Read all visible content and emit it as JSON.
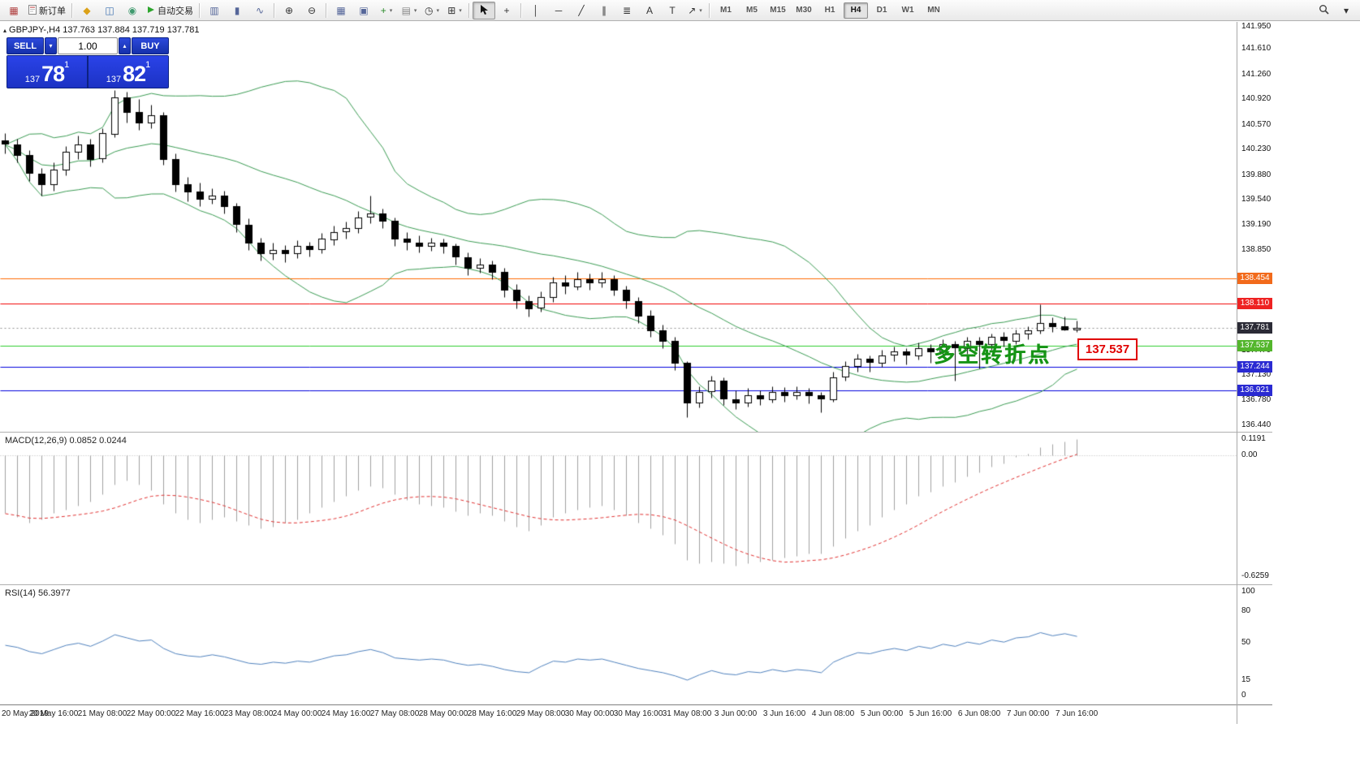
{
  "toolbar": {
    "timeframes": [
      "M1",
      "M5",
      "M15",
      "M30",
      "H1",
      "H4",
      "D1",
      "W1",
      "MN"
    ],
    "active_timeframe": "H4",
    "items": [
      {
        "k": "btn",
        "name": "charts-window-icon",
        "g": "▦",
        "c": "#b04040"
      },
      {
        "k": "btn",
        "name": "new-order-button",
        "g": "@page",
        "label": "新订单"
      },
      {
        "k": "sep"
      },
      {
        "k": "btn",
        "name": "marketwatch-icon",
        "g": "◆",
        "c": "#dba118"
      },
      {
        "k": "btn",
        "name": "data-window-icon",
        "g": "◫",
        "c": "#3a6fb0"
      },
      {
        "k": "btn",
        "name": "navigator-icon",
        "g": "◉",
        "c": "#3f9a6e"
      },
      {
        "k": "btn",
        "name": "autotrading-button",
        "g": "@play",
        "label": "自动交易"
      },
      {
        "k": "sep"
      },
      {
        "k": "btn",
        "name": "bar-chart-icon",
        "g": "▥",
        "c": "#556699"
      },
      {
        "k": "btn",
        "name": "candlestick-chart-icon",
        "g": "▮",
        "c": "#556699"
      },
      {
        "k": "btn",
        "name": "line-chart-icon",
        "g": "∿",
        "c": "#556699"
      },
      {
        "k": "sep"
      },
      {
        "k": "btn",
        "name": "zoom-in-icon",
        "g": "⊕",
        "c": "#333333"
      },
      {
        "k": "btn",
        "name": "zoom-out-icon",
        "g": "⊖",
        "c": "#333333"
      },
      {
        "k": "sep"
      },
      {
        "k": "btn",
        "name": "tile-windows-icon",
        "g": "▦",
        "c": "#556699"
      },
      {
        "k": "btn",
        "name": "cascade-windows-icon",
        "g": "▣",
        "c": "#556699"
      },
      {
        "k": "btn",
        "name": "new-chart-icon",
        "g": "+",
        "c": "#2a8a2a",
        "caret": true
      },
      {
        "k": "btn",
        "name": "profiles-icon",
        "g": "▤",
        "c": "#888888",
        "caret": true
      },
      {
        "k": "btn",
        "name": "period-icon",
        "g": "◷",
        "c": "#333333",
        "caret": true
      },
      {
        "k": "btn",
        "name": "templates-icon",
        "g": "⊞",
        "c": "#333333",
        "caret": true
      },
      {
        "k": "sep"
      },
      {
        "k": "btn",
        "name": "cursor-icon",
        "g": "@cursor",
        "active": true
      },
      {
        "k": "btn",
        "name": "crosshair-icon",
        "g": "+",
        "c": "#333333"
      },
      {
        "k": "sep"
      },
      {
        "k": "btn",
        "name": "vertical-line-icon",
        "g": "│",
        "c": "#333333"
      },
      {
        "k": "btn",
        "name": "horizontal-line-icon",
        "g": "─",
        "c": "#333333"
      },
      {
        "k": "btn",
        "name": "trendline-icon",
        "g": "╱",
        "c": "#333333"
      },
      {
        "k": "btn",
        "name": "equidistant-channel-icon",
        "g": "∥",
        "c": "#333333"
      },
      {
        "k": "btn",
        "name": "fibonacci-icon",
        "g": "≣",
        "c": "#333333"
      },
      {
        "k": "btn",
        "name": "text-icon",
        "g": "A",
        "c": "#333333"
      },
      {
        "k": "btn",
        "name": "label-icon",
        "g": "T",
        "c": "#333333"
      },
      {
        "k": "btn",
        "name": "arrows-icon",
        "g": "↗",
        "c": "#333333",
        "caret": true
      },
      {
        "k": "sep"
      },
      {
        "k": "tf"
      },
      {
        "k": "spacer"
      },
      {
        "k": "btn",
        "name": "search-icon",
        "g": "@search"
      },
      {
        "k": "btn",
        "name": "menu-chevron-icon",
        "g": "▾",
        "c": "#333333"
      }
    ]
  },
  "chart": {
    "collapse_icon": "▴",
    "header_title": "GBPJPY-,H4 137.763 137.884 137.719 137.781",
    "one_click": {
      "sell_label": "SELL",
      "buy_label": "BUY",
      "volume": "1.00",
      "dec_glyph": "▾",
      "inc_glyph": "▴",
      "sell_prefix": "137",
      "sell_big": "78",
      "sell_sup": "1",
      "buy_prefix": "137",
      "buy_big": "82",
      "buy_sup": "1"
    },
    "annotation": "多空转折点",
    "price_flag": "137.537"
  },
  "chart_data": {
    "type": "candlestick",
    "title": "GBPJPY-,H4",
    "bars_per_label": 4,
    "x_labels": [
      "20 May 2019",
      "20 May 16:00",
      "21 May 08:00",
      "22 May 00:00",
      "22 May 16:00",
      "23 May 08:00",
      "24 May 00:00",
      "24 May 16:00",
      "27 May 08:00",
      "28 May 00:00",
      "28 May 16:00",
      "29 May 08:00",
      "30 May 00:00",
      "30 May 16:00",
      "31 May 08:00",
      "3 Jun 00:00",
      "3 Jun 16:00",
      "4 Jun 08:00",
      "5 Jun 00:00",
      "5 Jun 16:00",
      "6 Jun 08:00",
      "7 Jun 00:00",
      "7 Jun 16:00"
    ],
    "price_axis": {
      "view_max": 141.972,
      "view_min": 136.373,
      "plain_ticks": [
        "141.950",
        "141.610",
        "141.260",
        "140.920",
        "140.570",
        "140.230",
        "139.880",
        "139.540",
        "139.190",
        "138.850",
        "137.470",
        "137.130",
        "136.780",
        "136.440"
      ]
    },
    "hlines": [
      {
        "price": 138.454,
        "label": "138.454",
        "line": "#ff6a00",
        "badge": "#f26a1b",
        "style": "solid"
      },
      {
        "price": 138.11,
        "label": "138.110",
        "line": "#f00000",
        "badge": "#ee2222",
        "style": "solid"
      },
      {
        "price": 137.781,
        "label": "137.781",
        "line": "#909090",
        "badge": "#2b2b36",
        "style": "dot"
      },
      {
        "price": 137.537,
        "label": "137.537",
        "line": "#2ecc2e",
        "badge": "#53b62c",
        "style": "solid"
      },
      {
        "price": 137.244,
        "label": "137.244",
        "line": "#0000dd",
        "badge": "#2a2ad2",
        "style": "solid"
      },
      {
        "price": 136.921,
        "label": "136.921",
        "line": "#0000dd",
        "badge": "#2a2ad2",
        "style": "solid"
      }
    ],
    "bollinger": {
      "period": 20,
      "deviation": 2,
      "color": "#3b9b53"
    },
    "candles": [
      [
        140.35,
        140.45,
        140.18,
        140.3
      ],
      [
        140.3,
        140.38,
        140.05,
        140.15
      ],
      [
        140.15,
        140.22,
        139.8,
        139.9
      ],
      [
        139.9,
        139.98,
        139.6,
        139.75
      ],
      [
        139.75,
        140.05,
        139.66,
        139.95
      ],
      [
        139.95,
        140.28,
        139.88,
        140.2
      ],
      [
        140.2,
        140.42,
        140.1,
        140.3
      ],
      [
        140.3,
        140.38,
        140.0,
        140.1
      ],
      [
        140.1,
        140.52,
        140.05,
        140.45
      ],
      [
        140.45,
        141.05,
        140.4,
        140.95
      ],
      [
        140.95,
        141.02,
        140.6,
        140.75
      ],
      [
        140.75,
        140.92,
        140.5,
        140.6
      ],
      [
        140.6,
        140.85,
        140.52,
        140.7
      ],
      [
        140.7,
        140.75,
        140.02,
        140.1
      ],
      [
        140.1,
        140.18,
        139.65,
        139.75
      ],
      [
        139.75,
        139.85,
        139.52,
        139.65
      ],
      [
        139.65,
        139.77,
        139.45,
        139.55
      ],
      [
        139.55,
        139.7,
        139.48,
        139.6
      ],
      [
        139.6,
        139.66,
        139.35,
        139.45
      ],
      [
        139.45,
        139.5,
        139.1,
        139.2
      ],
      [
        139.2,
        139.28,
        138.85,
        138.95
      ],
      [
        138.95,
        139.02,
        138.7,
        138.8
      ],
      [
        138.8,
        138.95,
        138.72,
        138.85
      ],
      [
        138.85,
        138.92,
        138.68,
        138.8
      ],
      [
        138.8,
        138.98,
        138.74,
        138.9
      ],
      [
        138.9,
        138.96,
        138.76,
        138.85
      ],
      [
        138.85,
        139.08,
        138.8,
        139.0
      ],
      [
        139.0,
        139.18,
        138.92,
        139.1
      ],
      [
        139.1,
        139.24,
        139.0,
        139.15
      ],
      [
        139.15,
        139.38,
        139.08,
        139.3
      ],
      [
        139.3,
        139.6,
        139.22,
        139.35
      ],
      [
        139.35,
        139.42,
        139.15,
        139.25
      ],
      [
        139.25,
        139.3,
        138.9,
        139.0
      ],
      [
        139.0,
        139.1,
        138.85,
        138.95
      ],
      [
        138.95,
        139.05,
        138.82,
        138.9
      ],
      [
        138.9,
        139.02,
        138.84,
        138.95
      ],
      [
        138.95,
        139.0,
        138.8,
        138.9
      ],
      [
        138.9,
        138.94,
        138.65,
        138.75
      ],
      [
        138.75,
        138.82,
        138.5,
        138.6
      ],
      [
        138.6,
        138.74,
        138.54,
        138.65
      ],
      [
        138.65,
        138.7,
        138.45,
        138.55
      ],
      [
        138.55,
        138.6,
        138.2,
        138.3
      ],
      [
        138.3,
        138.38,
        138.05,
        138.15
      ],
      [
        138.15,
        138.22,
        137.93,
        138.05
      ],
      [
        138.05,
        138.28,
        138.0,
        138.2
      ],
      [
        138.2,
        138.48,
        138.14,
        138.4
      ],
      [
        138.4,
        138.5,
        138.25,
        138.35
      ],
      [
        138.35,
        138.55,
        138.3,
        138.45
      ],
      [
        138.45,
        138.52,
        138.3,
        138.4
      ],
      [
        138.4,
        138.55,
        138.34,
        138.45
      ],
      [
        138.45,
        138.5,
        138.22,
        138.3
      ],
      [
        138.3,
        138.36,
        138.05,
        138.15
      ],
      [
        138.15,
        138.2,
        137.85,
        137.95
      ],
      [
        137.95,
        138.02,
        137.65,
        137.75
      ],
      [
        137.75,
        137.82,
        137.5,
        137.6
      ],
      [
        137.6,
        137.65,
        137.2,
        137.3
      ],
      [
        137.3,
        137.32,
        136.55,
        136.75
      ],
      [
        136.75,
        136.98,
        136.68,
        136.9
      ],
      [
        136.9,
        137.12,
        136.82,
        137.05
      ],
      [
        137.05,
        137.1,
        136.72,
        136.8
      ],
      [
        136.8,
        136.92,
        136.66,
        136.75
      ],
      [
        136.75,
        136.95,
        136.7,
        136.85
      ],
      [
        136.85,
        136.92,
        136.72,
        136.8
      ],
      [
        136.8,
        136.98,
        136.75,
        136.9
      ],
      [
        136.9,
        136.96,
        136.76,
        136.85
      ],
      [
        136.85,
        136.98,
        136.8,
        136.9
      ],
      [
        136.9,
        136.95,
        136.74,
        136.85
      ],
      [
        136.85,
        136.9,
        136.62,
        136.8
      ],
      [
        136.8,
        137.18,
        136.76,
        137.1
      ],
      [
        137.1,
        137.32,
        137.05,
        137.25
      ],
      [
        137.25,
        137.42,
        137.18,
        137.35
      ],
      [
        137.35,
        137.4,
        137.18,
        137.3
      ],
      [
        137.3,
        137.48,
        137.24,
        137.4
      ],
      [
        137.4,
        137.52,
        137.32,
        137.45
      ],
      [
        137.45,
        137.5,
        137.28,
        137.4
      ],
      [
        137.4,
        137.58,
        137.34,
        137.5
      ],
      [
        137.5,
        137.55,
        137.3,
        137.45
      ],
      [
        137.45,
        137.62,
        137.38,
        137.55
      ],
      [
        137.55,
        137.6,
        137.05,
        137.5
      ],
      [
        137.5,
        137.66,
        137.42,
        137.6
      ],
      [
        137.6,
        137.65,
        137.22,
        137.55
      ],
      [
        137.55,
        137.7,
        137.48,
        137.65
      ],
      [
        137.65,
        137.72,
        137.52,
        137.6
      ],
      [
        137.6,
        137.76,
        137.55,
        137.7
      ],
      [
        137.7,
        137.8,
        137.62,
        137.75
      ],
      [
        137.75,
        138.1,
        137.7,
        137.85
      ],
      [
        137.85,
        137.92,
        137.72,
        137.8
      ],
      [
        137.8,
        137.93,
        137.74,
        137.76
      ],
      [
        137.763,
        137.884,
        137.719,
        137.781
      ]
    ],
    "macd": {
      "display": "MACD(12,26,9) 0.0852 0.0244",
      "ticks": [
        "0.1191",
        "0.00",
        "-0.6259"
      ],
      "tick_values": [
        0.1191,
        0,
        -0.6259
      ],
      "signal_period": 9,
      "bar_color": "#a0a0a0",
      "signal_color": "#e03030",
      "hist": [
        -0.3,
        -0.32,
        -0.35,
        -0.33,
        -0.3,
        -0.28,
        -0.26,
        -0.24,
        -0.2,
        -0.15,
        -0.13,
        -0.15,
        -0.18,
        -0.25,
        -0.3,
        -0.33,
        -0.35,
        -0.33,
        -0.32,
        -0.34,
        -0.36,
        -0.38,
        -0.37,
        -0.35,
        -0.33,
        -0.3,
        -0.27,
        -0.24,
        -0.21,
        -0.18,
        -0.16,
        -0.17,
        -0.2,
        -0.23,
        -0.25,
        -0.26,
        -0.27,
        -0.29,
        -0.31,
        -0.3,
        -0.31,
        -0.34,
        -0.37,
        -0.39,
        -0.36,
        -0.32,
        -0.3,
        -0.28,
        -0.27,
        -0.26,
        -0.28,
        -0.31,
        -0.35,
        -0.38,
        -0.41,
        -0.46,
        -0.54,
        -0.56,
        -0.55,
        -0.56,
        -0.57,
        -0.56,
        -0.55,
        -0.54,
        -0.53,
        -0.52,
        -0.51,
        -0.51,
        -0.47,
        -0.43,
        -0.39,
        -0.36,
        -0.32,
        -0.28,
        -0.25,
        -0.21,
        -0.19,
        -0.16,
        -0.14,
        -0.11,
        -0.09,
        -0.06,
        -0.04,
        -0.01,
        0.01,
        0.04,
        0.06,
        0.07,
        0.0852
      ]
    },
    "rsi": {
      "display": "RSI(14) 56.3977",
      "ticks": [
        "100",
        "80",
        "50",
        "15",
        "0"
      ],
      "tick_values": [
        100,
        80,
        50,
        15,
        0
      ],
      "color": "#4f81bd",
      "series": [
        48,
        46,
        42,
        40,
        44,
        48,
        50,
        47,
        52,
        58,
        55,
        52,
        53,
        45,
        40,
        38,
        37,
        39,
        37,
        34,
        31,
        30,
        32,
        31,
        33,
        32,
        35,
        38,
        39,
        42,
        44,
        41,
        36,
        35,
        34,
        35,
        34,
        31,
        29,
        30,
        28,
        25,
        23,
        22,
        28,
        33,
        32,
        35,
        34,
        35,
        32,
        29,
        26,
        24,
        22,
        19,
        15,
        20,
        24,
        21,
        20,
        23,
        22,
        25,
        23,
        25,
        24,
        22,
        32,
        37,
        41,
        40,
        43,
        45,
        43,
        47,
        45,
        49,
        47,
        51,
        49,
        53,
        51,
        55,
        56,
        60,
        57,
        59,
        56.4
      ]
    }
  }
}
